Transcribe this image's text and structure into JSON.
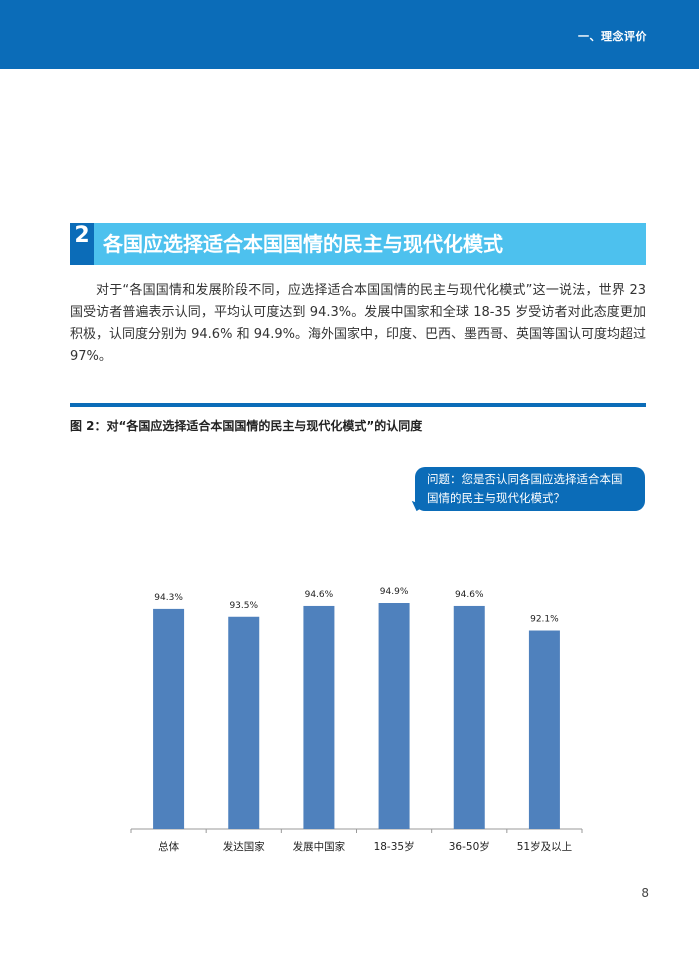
{
  "header": {
    "section_label": "一、理念评价"
  },
  "heading": {
    "number": "2",
    "title": "各国应选择适合本国国情的民主与现代化模式"
  },
  "body_text": "对于“各国国情和发展阶段不同，应选择适合本国国情的民主与现代化模式”这一说法，世界 23 国受访者普遍表示认同，平均认可度达到 94.3%。发展中国家和全球 18-35 岁受访者对此态度更加积极，认同度分别为 94.6% 和 94.9%。海外国家中，印度、巴西、墨西哥、英国等国认可度均超过 97%。",
  "figure": {
    "caption": "图 2：对“各国应选择适合本国国情的民主与现代化模式”的认同度",
    "question_line1": "问题：您是否认同各国应选择适合本国",
    "question_line2": "国情的民主与现代化模式？"
  },
  "chart_data": {
    "type": "bar",
    "categories": [
      "总体",
      "发达国家",
      "发展中国家",
      "18-35岁",
      "36-50岁",
      "51岁及以上"
    ],
    "values": [
      94.3,
      93.5,
      94.6,
      94.9,
      94.6,
      92.1
    ],
    "value_labels": [
      "94.3%",
      "93.5%",
      "94.6%",
      "94.9%",
      "94.6%",
      "92.1%"
    ],
    "title": "",
    "xlabel": "",
    "ylabel": "",
    "bar_color": "#4f81bd",
    "grid": false
  },
  "page_number": "8",
  "colors": {
    "brand_blue": "#0b6cb8",
    "heading_cyan": "#4dc1ee"
  }
}
